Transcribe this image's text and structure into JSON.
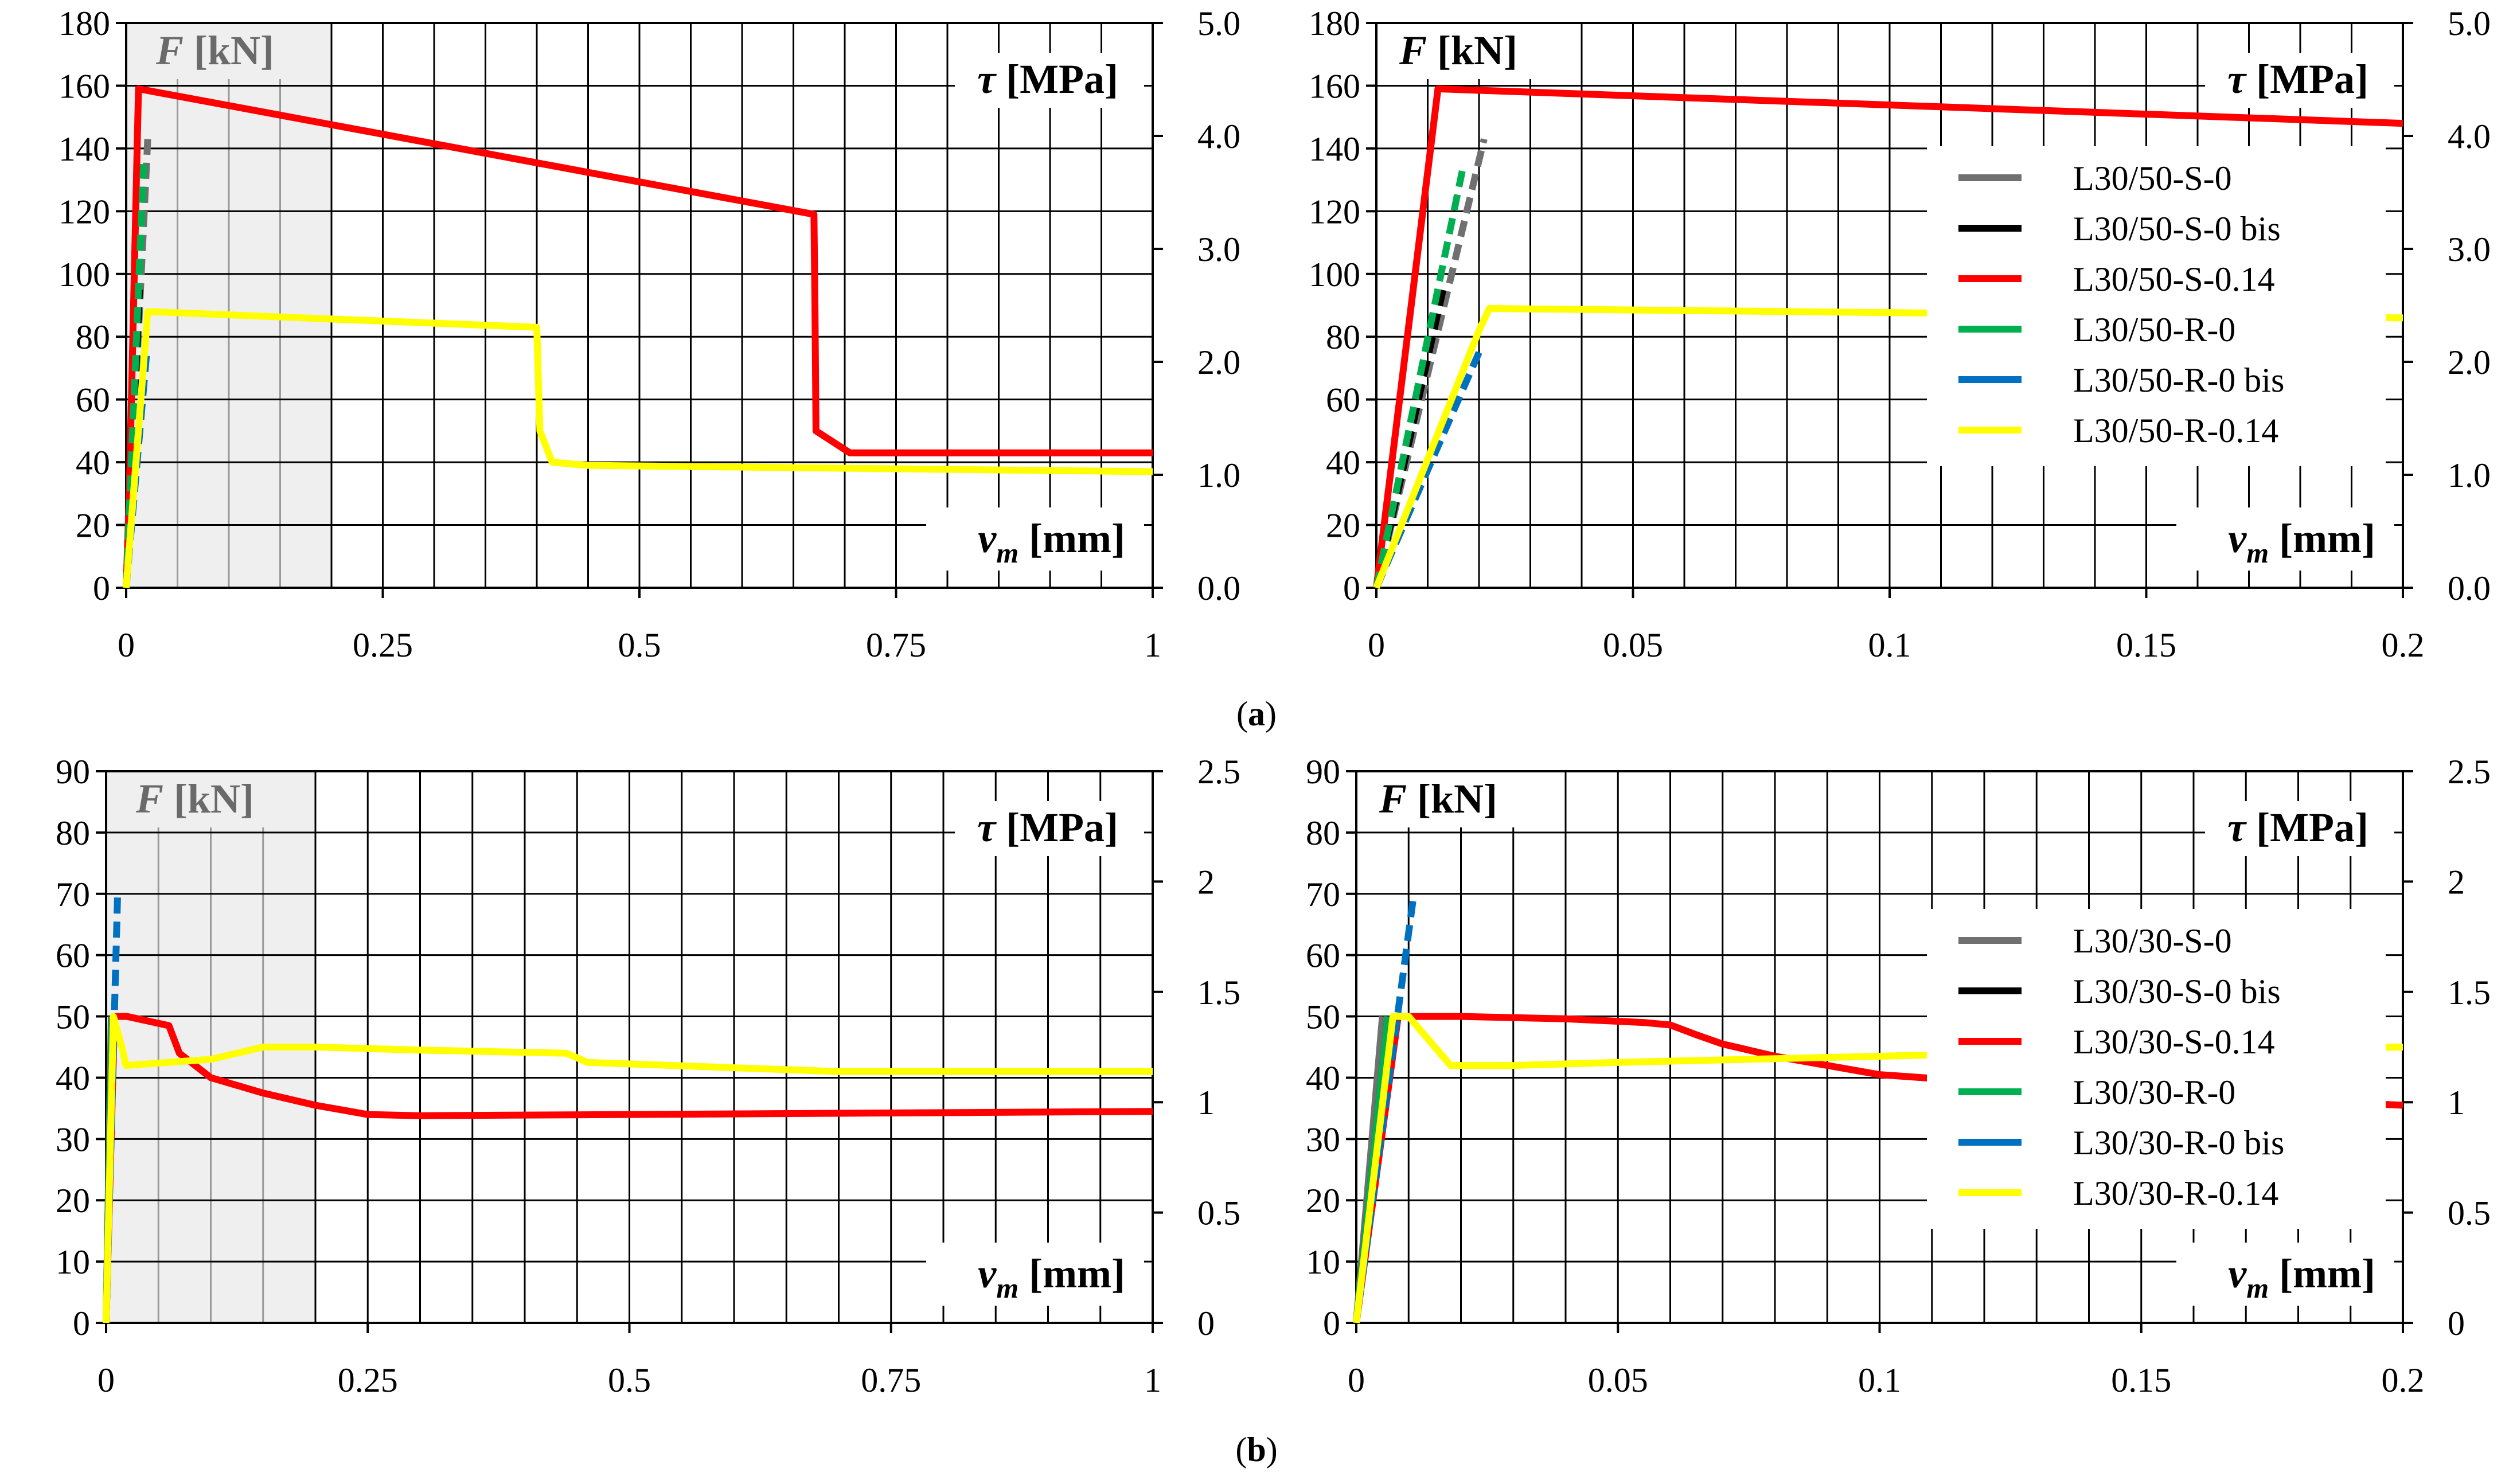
{
  "figure": {
    "caption_a": "(a)",
    "caption_b": "(b)"
  },
  "chart_data": [
    {
      "id": "a-left",
      "type": "line",
      "xlim": [
        0,
        1
      ],
      "ylim": [
        0,
        180
      ],
      "y2lim": [
        0,
        5.0
      ],
      "xticks": [
        "0",
        "0.25",
        "0.5",
        "0.75",
        "1"
      ],
      "yticks": [
        "0",
        "20",
        "40",
        "60",
        "80",
        "100",
        "120",
        "140",
        "160",
        "180"
      ],
      "y2ticks": [
        "0.0",
        "1.0",
        "2.0",
        "3.0",
        "4.0",
        "5.0"
      ],
      "ylabel_sym": "F",
      "ylabel_unit": " [kN]",
      "y2label_sym": "τ",
      "y2label_unit": " [MPa]",
      "xlabel_sym": "v",
      "xlabel_sub": "m",
      "xlabel_unit": " [mm]",
      "shaded_xmax": 0.2,
      "series": [
        {
          "name": "L30/50-S-0",
          "color": "#707070",
          "dash": true,
          "x": [
            0,
            0.021
          ],
          "y": [
            0,
            143
          ]
        },
        {
          "name": "L30/50-S-0 bis",
          "color": "#000000",
          "dash": true,
          "x": [
            0,
            0.013
          ],
          "y": [
            0,
            95
          ]
        },
        {
          "name": "L30/50-S-0.14",
          "color": "#ff0000",
          "dash": false,
          "x": [
            0,
            0.003,
            0.012,
            0.67,
            0.671,
            0.672,
            0.705,
            1.0
          ],
          "y": [
            0,
            30,
            159,
            119,
            89,
            50,
            43,
            43
          ]
        },
        {
          "name": "L30/50-R-0",
          "color": "#00b050",
          "dash": true,
          "x": [
            0,
            0.017
          ],
          "y": [
            0,
            135
          ]
        },
        {
          "name": "L30/50-R-0 bis",
          "color": "#0070c0",
          "dash": true,
          "x": [
            0,
            0.02
          ],
          "y": [
            0,
            75
          ]
        },
        {
          "name": "L30/50-R-0.14",
          "color": "#ffff00",
          "dash": false,
          "x": [
            0,
            0.021,
            0.4,
            0.403,
            0.415,
            0.45,
            1.0
          ],
          "y": [
            0,
            88,
            83,
            50,
            40,
            39,
            37
          ]
        }
      ]
    },
    {
      "id": "a-right",
      "type": "line",
      "xlim": [
        0,
        0.2
      ],
      "ylim": [
        0,
        180
      ],
      "y2lim": [
        0,
        5.0
      ],
      "xticks": [
        "0",
        "0.05",
        "0.1",
        "0.15",
        "0.2"
      ],
      "yticks": [
        "0",
        "20",
        "40",
        "60",
        "80",
        "100",
        "120",
        "140",
        "160",
        "180"
      ],
      "y2ticks": [
        "0.0",
        "1.0",
        "2.0",
        "3.0",
        "4.0",
        "5.0"
      ],
      "ylabel_sym": "F",
      "ylabel_unit": " [kN]",
      "y2label_sym": "τ",
      "y2label_unit": " [MPa]",
      "xlabel_sym": "v",
      "xlabel_sub": "m",
      "xlabel_unit": " [mm]",
      "legend": "right",
      "series": [
        {
          "name": "L30/50-S-0",
          "color": "#707070",
          "dash": true,
          "x": [
            0,
            0.021
          ],
          "y": [
            0,
            143
          ]
        },
        {
          "name": "L30/50-S-0 bis",
          "color": "#000000",
          "dash": true,
          "x": [
            0,
            0.013
          ],
          "y": [
            0,
            95
          ]
        },
        {
          "name": "L30/50-S-0.14",
          "color": "#ff0000",
          "dash": false,
          "x": [
            0,
            0.012,
            0.2
          ],
          "y": [
            0,
            159,
            148
          ]
        },
        {
          "name": "L30/50-R-0",
          "color": "#00b050",
          "dash": true,
          "x": [
            0,
            0.017
          ],
          "y": [
            0,
            135
          ]
        },
        {
          "name": "L30/50-R-0 bis",
          "color": "#0070c0",
          "dash": true,
          "x": [
            0,
            0.02
          ],
          "y": [
            0,
            75
          ]
        },
        {
          "name": "L30/50-R-0.14",
          "color": "#ffff00",
          "dash": false,
          "x": [
            0,
            0.02,
            0.022,
            0.2
          ],
          "y": [
            0,
            82,
            89,
            86
          ]
        }
      ]
    },
    {
      "id": "b-left",
      "type": "line",
      "xlim": [
        0,
        1
      ],
      "ylim": [
        0,
        90
      ],
      "y2lim": [
        0,
        2.5
      ],
      "xticks": [
        "0",
        "0.25",
        "0.5",
        "0.75",
        "1"
      ],
      "yticks": [
        "0",
        "10",
        "20",
        "30",
        "40",
        "50",
        "60",
        "70",
        "80",
        "90"
      ],
      "y2ticks": [
        "0",
        "0.5",
        "1",
        "1.5",
        "2",
        "2.5"
      ],
      "ylabel_sym": "F",
      "ylabel_unit": " [kN]",
      "y2label_sym": "τ",
      "y2label_unit": " [MPa]",
      "xlabel_sym": "v",
      "xlabel_sub": "m",
      "xlabel_unit": " [mm]",
      "shaded_xmax": 0.2,
      "series": [
        {
          "name": "L30/30-S-0",
          "color": "#707070",
          "dash": false,
          "x": [
            0,
            0.005
          ],
          "y": [
            0,
            50
          ]
        },
        {
          "name": "L30/30-S-0 bis",
          "color": "#000000",
          "dash": false,
          "x": [
            0,
            0.006
          ],
          "y": [
            0,
            50
          ]
        },
        {
          "name": "L30/30-S-0.14",
          "color": "#ff0000",
          "dash": false,
          "x": [
            0,
            0.008,
            0.02,
            0.06,
            0.07,
            0.1,
            0.15,
            0.2,
            0.25,
            0.3,
            0.5,
            1.0
          ],
          "y": [
            0,
            50,
            50,
            48.5,
            44,
            40,
            37.5,
            35.5,
            34,
            33.8,
            34,
            34.5
          ]
        },
        {
          "name": "L30/30-R-0",
          "color": "#00b050",
          "dash": false,
          "x": [
            0,
            0.006
          ],
          "y": [
            0,
            50
          ]
        },
        {
          "name": "L30/30-R-0 bis",
          "color": "#0070c0",
          "dash": true,
          "x": [
            0,
            0.011
          ],
          "y": [
            0,
            70
          ]
        },
        {
          "name": "L30/30-R-0.14",
          "color": "#ffff00",
          "dash": false,
          "x": [
            0,
            0.007,
            0.015,
            0.019,
            0.1,
            0.15,
            0.2,
            0.3,
            0.44,
            0.46,
            0.7,
            1.0
          ],
          "y": [
            0,
            50,
            45,
            42,
            43,
            45,
            45,
            44.5,
            44,
            42.5,
            41,
            41
          ]
        }
      ]
    },
    {
      "id": "b-right",
      "type": "line",
      "xlim": [
        0,
        0.2
      ],
      "ylim": [
        0,
        90
      ],
      "y2lim": [
        0,
        2.5
      ],
      "xticks": [
        "0",
        "0.05",
        "0.1",
        "0.15",
        "0.2"
      ],
      "yticks": [
        "0",
        "10",
        "20",
        "30",
        "40",
        "50",
        "60",
        "70",
        "80",
        "90"
      ],
      "y2ticks": [
        "0",
        "0.5",
        "1",
        "1.5",
        "2",
        "2.5"
      ],
      "ylabel_sym": "F",
      "ylabel_unit": " [kN]",
      "y2label_sym": "τ",
      "y2label_unit": " [MPa]",
      "xlabel_sym": "v",
      "xlabel_sub": "m",
      "xlabel_unit": " [mm]",
      "legend": "right",
      "series": [
        {
          "name": "L30/30-S-0",
          "color": "#707070",
          "dash": false,
          "x": [
            0,
            0.005
          ],
          "y": [
            0,
            50
          ]
        },
        {
          "name": "L30/30-S-0 bis",
          "color": "#000000",
          "dash": false,
          "x": [
            0,
            0.006
          ],
          "y": [
            0,
            50
          ]
        },
        {
          "name": "L30/30-S-0.14",
          "color": "#ff0000",
          "dash": false,
          "x": [
            0,
            0.008,
            0.02,
            0.04,
            0.055,
            0.06,
            0.065,
            0.07,
            0.075,
            0.08,
            0.1,
            0.15,
            0.2
          ],
          "y": [
            0,
            50,
            50,
            49.6,
            49,
            48.6,
            47,
            45.5,
            44.5,
            43.5,
            40.5,
            37.5,
            35.5
          ]
        },
        {
          "name": "L30/30-R-0",
          "color": "#00b050",
          "dash": false,
          "x": [
            0,
            0.006
          ],
          "y": [
            0,
            50
          ]
        },
        {
          "name": "L30/30-R-0 bis",
          "color": "#0070c0",
          "dash": true,
          "x": [
            0,
            0.011
          ],
          "y": [
            0,
            70
          ]
        },
        {
          "name": "L30/30-R-0.14",
          "color": "#ffff00",
          "dash": false,
          "x": [
            0,
            0.007,
            0.01,
            0.015,
            0.018,
            0.03,
            0.05,
            0.1,
            0.15,
            0.2
          ],
          "y": [
            0,
            50,
            50,
            45,
            42,
            42,
            42.5,
            43.5,
            44.5,
            45
          ]
        }
      ]
    }
  ]
}
